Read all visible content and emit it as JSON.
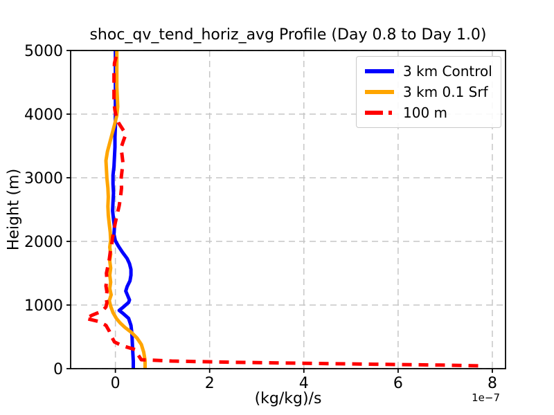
{
  "chart_data": {
    "type": "line",
    "title": "shoc_qv_tend_horiz_avg Profile (Day 0.8 to Day 1.0)",
    "xlabel": "(kg/kg)/s",
    "ylabel": "Height (m)",
    "x_offset_text": "1e−7",
    "x_unit_scale": "1e-7",
    "xlim": [
      -0.95,
      8.28
    ],
    "ylim": [
      0,
      5000
    ],
    "xticks": [
      0,
      2,
      4,
      6,
      8
    ],
    "yticks": [
      0,
      1000,
      2000,
      3000,
      4000,
      5000
    ],
    "grid": true,
    "grid_color": "#c6c6c6",
    "legend_position": "upper right",
    "series": [
      {
        "name": "3 km Control",
        "color": "#0000ff",
        "linestyle": "solid",
        "linewidth": 5,
        "points": [
          [
            0.38,
            0
          ],
          [
            0.38,
            120
          ],
          [
            0.37,
            250
          ],
          [
            0.36,
            400
          ],
          [
            0.35,
            550
          ],
          [
            0.33,
            680
          ],
          [
            0.28,
            790
          ],
          [
            0.16,
            870
          ],
          [
            0.08,
            915
          ],
          [
            0.18,
            975
          ],
          [
            0.28,
            1040
          ],
          [
            0.3,
            1080
          ],
          [
            0.26,
            1150
          ],
          [
            0.22,
            1220
          ],
          [
            0.25,
            1290
          ],
          [
            0.31,
            1380
          ],
          [
            0.33,
            1470
          ],
          [
            0.33,
            1560
          ],
          [
            0.3,
            1650
          ],
          [
            0.25,
            1730
          ],
          [
            0.15,
            1830
          ],
          [
            0.06,
            1930
          ],
          [
            0.0,
            2010
          ],
          [
            -0.03,
            2110
          ],
          [
            -0.02,
            2230
          ],
          [
            -0.04,
            2350
          ],
          [
            -0.06,
            2480
          ],
          [
            -0.05,
            2620
          ],
          [
            -0.04,
            2760
          ],
          [
            -0.05,
            2900
          ],
          [
            -0.05,
            3040
          ],
          [
            -0.03,
            3180
          ],
          [
            -0.02,
            3330
          ],
          [
            -0.01,
            3480
          ],
          [
            -0.01,
            3640
          ],
          [
            0.0,
            3800
          ],
          [
            0.0,
            3960
          ],
          [
            0.0,
            4140
          ],
          [
            0.0,
            4330
          ],
          [
            0.0,
            4520
          ],
          [
            0.0,
            4760
          ],
          [
            0.0,
            5000
          ]
        ]
      },
      {
        "name": "3 km 0.1 Srf",
        "color": "#ffa500",
        "linestyle": "solid",
        "linewidth": 5,
        "points": [
          [
            0.63,
            0
          ],
          [
            0.63,
            130
          ],
          [
            0.6,
            260
          ],
          [
            0.55,
            380
          ],
          [
            0.46,
            480
          ],
          [
            0.34,
            570
          ],
          [
            0.2,
            650
          ],
          [
            0.1,
            720
          ],
          [
            0.02,
            790
          ],
          [
            -0.05,
            880
          ],
          [
            -0.1,
            980
          ],
          [
            -0.13,
            1070
          ],
          [
            -0.09,
            1160
          ],
          [
            -0.12,
            1260
          ],
          [
            -0.1,
            1360
          ],
          [
            -0.12,
            1470
          ],
          [
            -0.1,
            1580
          ],
          [
            -0.12,
            1690
          ],
          [
            -0.1,
            1800
          ],
          [
            -0.12,
            1910
          ],
          [
            -0.1,
            2020
          ],
          [
            -0.11,
            2140
          ],
          [
            -0.13,
            2270
          ],
          [
            -0.15,
            2410
          ],
          [
            -0.16,
            2550
          ],
          [
            -0.15,
            2700
          ],
          [
            -0.16,
            2840
          ],
          [
            -0.18,
            2990
          ],
          [
            -0.19,
            3130
          ],
          [
            -0.2,
            3270
          ],
          [
            -0.17,
            3410
          ],
          [
            -0.12,
            3550
          ],
          [
            -0.07,
            3690
          ],
          [
            -0.02,
            3830
          ],
          [
            0.03,
            3980
          ],
          [
            0.05,
            4120
          ],
          [
            0.04,
            4270
          ],
          [
            0.03,
            4430
          ],
          [
            0.03,
            4620
          ],
          [
            0.03,
            4810
          ],
          [
            0.03,
            5000
          ]
        ]
      },
      {
        "name": "100 m",
        "color": "#ff0000",
        "linestyle": "dashed",
        "linewidth": 5,
        "points": [
          [
            7.7,
            45
          ],
          [
            7.0,
            55
          ],
          [
            5.5,
            70
          ],
          [
            4.0,
            85
          ],
          [
            2.5,
            100
          ],
          [
            1.2,
            120
          ],
          [
            0.55,
            140
          ],
          [
            0.48,
            220
          ],
          [
            0.42,
            300
          ],
          [
            0.15,
            360
          ],
          [
            -0.02,
            420
          ],
          [
            -0.08,
            500
          ],
          [
            -0.13,
            590
          ],
          [
            -0.2,
            680
          ],
          [
            -0.35,
            740
          ],
          [
            -0.63,
            790
          ],
          [
            -0.48,
            845
          ],
          [
            -0.28,
            905
          ],
          [
            -0.2,
            970
          ],
          [
            -0.18,
            1040
          ],
          [
            -0.2,
            1120
          ],
          [
            -0.18,
            1210
          ],
          [
            -0.2,
            1300
          ],
          [
            -0.18,
            1400
          ],
          [
            -0.19,
            1500
          ],
          [
            -0.16,
            1610
          ],
          [
            -0.13,
            1720
          ],
          [
            -0.11,
            1830
          ],
          [
            -0.08,
            1940
          ],
          [
            -0.06,
            2060
          ],
          [
            -0.03,
            2180
          ],
          [
            0.0,
            2300
          ],
          [
            0.04,
            2430
          ],
          [
            0.08,
            2560
          ],
          [
            0.11,
            2700
          ],
          [
            0.13,
            2840
          ],
          [
            0.12,
            2980
          ],
          [
            0.14,
            3110
          ],
          [
            0.16,
            3240
          ],
          [
            0.14,
            3360
          ],
          [
            0.12,
            3470
          ],
          [
            0.17,
            3580
          ],
          [
            0.22,
            3680
          ],
          [
            0.15,
            3770
          ],
          [
            0.07,
            3860
          ],
          [
            0.02,
            3950
          ],
          [
            -0.01,
            4060
          ],
          [
            -0.03,
            4180
          ],
          [
            -0.03,
            4320
          ],
          [
            -0.03,
            4470
          ],
          [
            -0.03,
            4630
          ],
          [
            -0.02,
            4800
          ],
          [
            0.02,
            4920
          ],
          [
            0.03,
            5000
          ]
        ]
      }
    ]
  }
}
